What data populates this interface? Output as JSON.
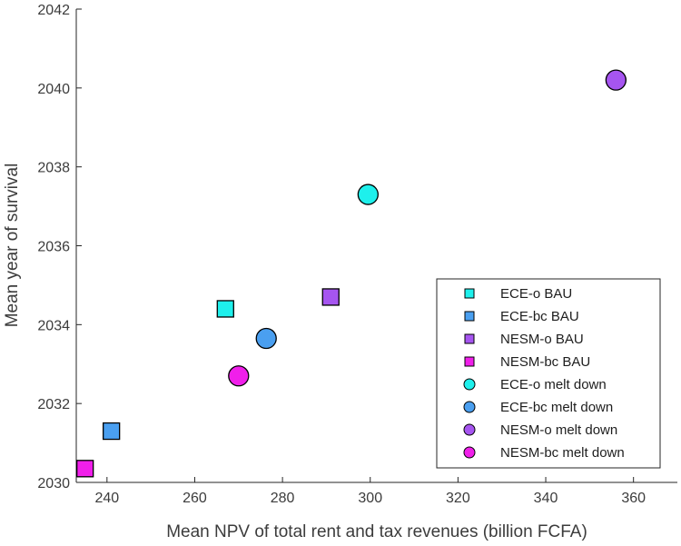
{
  "chart_data": {
    "type": "scatter",
    "title": "",
    "xlabel": "Mean NPV of total rent and tax revenues (billion FCFA)",
    "ylabel": "Mean year of survival",
    "xlim": [
      233,
      370
    ],
    "ylim": [
      2030,
      2042
    ],
    "xticks": [
      "240",
      "260",
      "280",
      "300",
      "320",
      "340",
      "360"
    ],
    "yticks": [
      "2030",
      "2032",
      "2034",
      "2036",
      "2038",
      "2040",
      "2042"
    ],
    "grid": false,
    "legend_position": "bottom-right",
    "series": [
      {
        "name": "ECE-o BAU",
        "marker": "square",
        "color": "#1ef0ec",
        "x": 267,
        "y": 2034.4
      },
      {
        "name": "ECE-bc BAU",
        "marker": "square",
        "color": "#4a9ff0",
        "x": 241,
        "y": 2031.3
      },
      {
        "name": "NESM-o BAU",
        "marker": "square",
        "color": "#a655f0",
        "x": 291,
        "y": 2034.7
      },
      {
        "name": "NESM-bc BAU",
        "marker": "square",
        "color": "#f01fea",
        "x": 235,
        "y": 2030.35
      },
      {
        "name": "ECE-o melt down",
        "marker": "circle",
        "color": "#1ef0ec",
        "x": 299.5,
        "y": 2037.3
      },
      {
        "name": "ECE-bc melt down",
        "marker": "circle",
        "color": "#4a9ff0",
        "x": 276.3,
        "y": 2033.65
      },
      {
        "name": "NESM-o melt down",
        "marker": "circle",
        "color": "#a655f0",
        "x": 356,
        "y": 2040.2
      },
      {
        "name": "NESM-bc melt down",
        "marker": "circle",
        "color": "#f01fea",
        "x": 270,
        "y": 2032.7
      }
    ]
  }
}
